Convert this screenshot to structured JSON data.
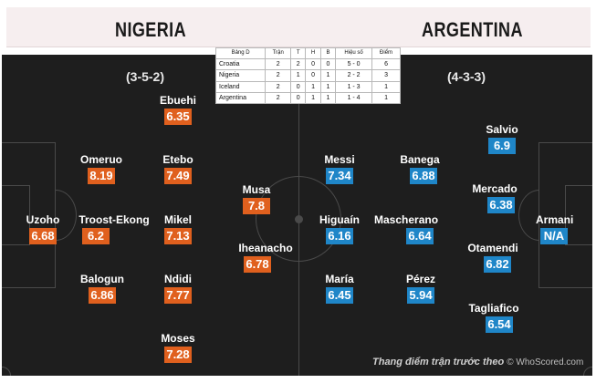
{
  "header": {
    "home_team": "NIGERIA",
    "away_team": "ARGENTINA"
  },
  "formations": {
    "home": "(3-5-2)",
    "away": "(4-3-3)"
  },
  "standings": {
    "columns": [
      "Bảng D",
      "Trận",
      "T",
      "H",
      "B",
      "Hiệu số",
      "Điểm"
    ],
    "rows": [
      [
        "Croatia",
        "2",
        "2",
        "0",
        "0",
        "5 - 0",
        "6"
      ],
      [
        "Nigeria",
        "2",
        "1",
        "0",
        "1",
        "2 - 2",
        "3"
      ],
      [
        "Iceland",
        "2",
        "0",
        "1",
        "1",
        "1 - 3",
        "1"
      ],
      [
        "Argentina",
        "2",
        "0",
        "1",
        "1",
        "1 - 4",
        "1"
      ]
    ]
  },
  "home_players": [
    {
      "name": "Ebuehi",
      "rating": "6.35"
    },
    {
      "name": "Omeruo",
      "rating": "8.19"
    },
    {
      "name": "Etebo",
      "rating": "7.49"
    },
    {
      "name": "Uzoho",
      "rating": "6.68"
    },
    {
      "name": "Troost-Ekong",
      "rating": "6.2"
    },
    {
      "name": "Mikel",
      "rating": "7.13"
    },
    {
      "name": "Balogun",
      "rating": "6.86"
    },
    {
      "name": "Ndidi",
      "rating": "7.77"
    },
    {
      "name": "Moses",
      "rating": "7.28"
    },
    {
      "name": "Musa",
      "rating": "7.8"
    },
    {
      "name": "Iheanacho",
      "rating": "6.78"
    }
  ],
  "away_players": [
    {
      "name": "Messi",
      "rating": "7.34"
    },
    {
      "name": "Higuaín",
      "rating": "6.16"
    },
    {
      "name": "María",
      "rating": "6.45"
    },
    {
      "name": "Banega",
      "rating": "6.88"
    },
    {
      "name": "Mascherano",
      "rating": "6.64"
    },
    {
      "name": "Pérez",
      "rating": "5.94"
    },
    {
      "name": "Salvio",
      "rating": "6.9"
    },
    {
      "name": "Mercado",
      "rating": "6.38"
    },
    {
      "name": "Otamendi",
      "rating": "6.82"
    },
    {
      "name": "Tagliafico",
      "rating": "6.54"
    },
    {
      "name": "Armani",
      "rating": "N/A"
    }
  ],
  "footer": {
    "caption": "Thang điểm trận trước theo",
    "source": "© WhoScored.com"
  },
  "colors": {
    "home_rating": "#e0601e",
    "away_rating": "#1f86c8",
    "pitch": "#1e1e1e"
  }
}
